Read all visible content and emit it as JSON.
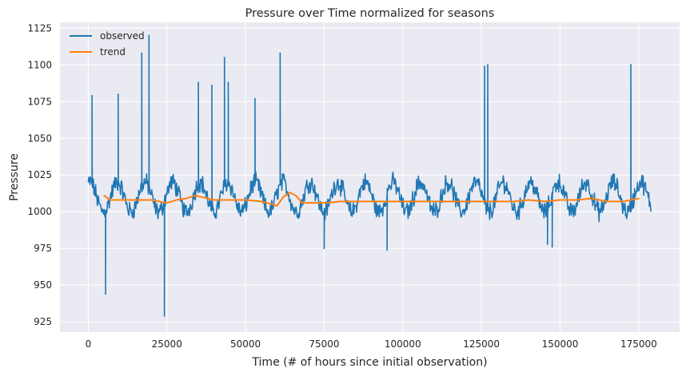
{
  "chart_data": {
    "type": "line",
    "title": "Pressure over Time normalized for seasons",
    "xlabel": "Time (# of hours since initial observation)",
    "ylabel": "Pressure",
    "xlim": [
      -9000,
      188000
    ],
    "ylim": [
      918,
      1129
    ],
    "x_ticks": [
      0,
      25000,
      50000,
      75000,
      100000,
      125000,
      150000,
      175000
    ],
    "y_ticks": [
      925,
      950,
      975,
      1000,
      1025,
      1050,
      1075,
      1100,
      1125
    ],
    "grid": true,
    "legend": "top-left",
    "colors": {
      "observed": "#1f77b4",
      "trend": "#ff7f0e",
      "plot_background": "#eaeaf2",
      "grid": "#ffffff"
    },
    "series": [
      {
        "name": "observed",
        "baseline": 1010,
        "seasonal_amplitude": 10,
        "period_hours": 8760,
        "noise_band": 5,
        "x_range": [
          0,
          179000
        ],
        "spikes": [
          {
            "x": 1200,
            "y": 1079
          },
          {
            "x": 5500,
            "y": 944
          },
          {
            "x": 9500,
            "y": 1080
          },
          {
            "x": 17000,
            "y": 1108
          },
          {
            "x": 19300,
            "y": 1120
          },
          {
            "x": 24200,
            "y": 929
          },
          {
            "x": 35000,
            "y": 1088
          },
          {
            "x": 39300,
            "y": 1086
          },
          {
            "x": 43300,
            "y": 1105
          },
          {
            "x": 44500,
            "y": 1088
          },
          {
            "x": 53000,
            "y": 1077
          },
          {
            "x": 61000,
            "y": 1108
          },
          {
            "x": 75000,
            "y": 975
          },
          {
            "x": 95000,
            "y": 974
          },
          {
            "x": 126000,
            "y": 1099
          },
          {
            "x": 127000,
            "y": 1100
          },
          {
            "x": 146000,
            "y": 978
          },
          {
            "x": 147500,
            "y": 976
          },
          {
            "x": 172500,
            "y": 1100
          }
        ]
      },
      {
        "name": "trend",
        "x": [
          5000,
          7000,
          10000,
          15000,
          20000,
          25000,
          28000,
          31000,
          34000,
          36000,
          40000,
          45000,
          50000,
          55000,
          57000,
          60000,
          62000,
          64000,
          66000,
          68000,
          72000,
          76000,
          80000,
          90000,
          100000,
          110000,
          120000,
          130000,
          135000,
          140000,
          145000,
          150000,
          155000,
          160000,
          165000,
          170000,
          175000
        ],
        "values": [
          1011,
          1008,
          1008,
          1008,
          1008,
          1006,
          1008,
          1009,
          1011,
          1010,
          1008,
          1008,
          1008,
          1007,
          1006,
          1004,
          1010,
          1013,
          1011,
          1006,
          1006,
          1006,
          1007,
          1007,
          1007,
          1007,
          1007,
          1007,
          1007,
          1008,
          1007,
          1008,
          1008,
          1009,
          1007,
          1007,
          1009
        ]
      }
    ]
  }
}
